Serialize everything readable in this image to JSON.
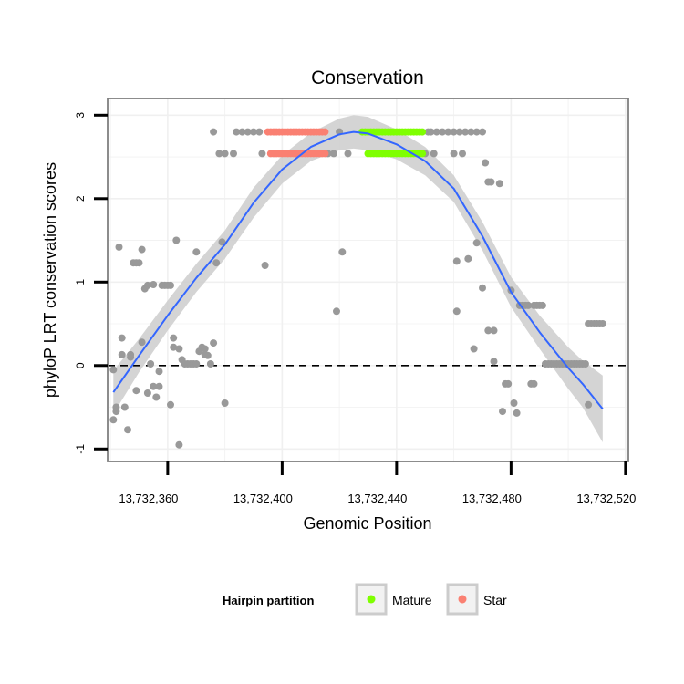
{
  "chart_data": {
    "type": "scatter",
    "title": "Conservation",
    "xlabel": "Genomic Position",
    "ylabel": "phyloP LRT conservation scores",
    "xlim": [
      13732339,
      13732521
    ],
    "ylim": [
      -1.15,
      3.2
    ],
    "x_ticks": [
      13732360,
      13732400,
      13732440,
      13732480,
      13732520
    ],
    "x_tick_labels": [
      "13,732,360",
      "13,732,400",
      "13,732,440",
      "13,732,480",
      "13,732,520"
    ],
    "y_ticks": [
      -1,
      0,
      1,
      2,
      3
    ],
    "y_tick_labels": [
      "-1",
      "0",
      "1",
      "2",
      "3"
    ],
    "grid": true,
    "reference_line": {
      "y": 0,
      "style": "dashed"
    },
    "legend": {
      "title": "Hairpin partition",
      "position": "bottom",
      "entries": [
        {
          "label": "Mature",
          "color": "#7FFF00"
        },
        {
          "label": "Star",
          "color": "#FA8072"
        }
      ]
    },
    "colors": {
      "other": "#999999",
      "mature": "#7FFF00",
      "star": "#FA8072",
      "smooth": "#3366FF",
      "band": "#CCCCCC",
      "panel_border": "#808080",
      "grid": "#F0F0F0"
    },
    "series": [
      {
        "name": "Other",
        "points": [
          [
            13732341,
            -0.05
          ],
          [
            13732341,
            -0.65
          ],
          [
            13732342,
            -0.55
          ],
          [
            13732342,
            -0.5
          ],
          [
            13732343,
            1.42
          ],
          [
            13732344,
            0.13
          ],
          [
            13732344,
            0.33
          ],
          [
            13732345,
            -0.5
          ],
          [
            13732346,
            -0.77
          ],
          [
            13732347,
            0.1
          ],
          [
            13732347,
            0.13
          ],
          [
            13732348,
            1.23
          ],
          [
            13732349,
            1.23
          ],
          [
            13732349,
            -0.3
          ],
          [
            13732350,
            1.23
          ],
          [
            13732351,
            1.39
          ],
          [
            13732351,
            0.28
          ],
          [
            13732352,
            0.92
          ],
          [
            13732353,
            0.96
          ],
          [
            13732353,
            -0.33
          ],
          [
            13732354,
            0.02
          ],
          [
            13732355,
            -0.25
          ],
          [
            13732355,
            0.97
          ],
          [
            13732356,
            -0.38
          ],
          [
            13732357,
            -0.25
          ],
          [
            13732357,
            -0.07
          ],
          [
            13732358,
            0.96
          ],
          [
            13732359,
            0.96
          ],
          [
            13732360,
            0.96
          ],
          [
            13732361,
            0.96
          ],
          [
            13732361,
            -0.47
          ],
          [
            13732362,
            0.33
          ],
          [
            13732362,
            0.22
          ],
          [
            13732363,
            1.5
          ],
          [
            13732364,
            0.2
          ],
          [
            13732364,
            -0.95
          ],
          [
            13732365,
            0.07
          ],
          [
            13732366,
            0.02
          ],
          [
            13732367,
            0.02
          ],
          [
            13732368,
            0.02
          ],
          [
            13732369,
            0.02
          ],
          [
            13732370,
            0.02
          ],
          [
            13732370,
            1.36
          ],
          [
            13732371,
            0.17
          ],
          [
            13732372,
            0.22
          ],
          [
            13732373,
            0.2
          ],
          [
            13732373,
            0.13
          ],
          [
            13732374,
            0.12
          ],
          [
            13732375,
            0.02
          ],
          [
            13732376,
            0.27
          ],
          [
            13732377,
            1.23
          ],
          [
            13732379,
            1.48
          ],
          [
            13732380,
            -0.45
          ],
          [
            13732376,
            2.8
          ],
          [
            13732378,
            2.54
          ],
          [
            13732380,
            2.54
          ],
          [
            13732383,
            2.54
          ],
          [
            13732384,
            2.8
          ],
          [
            13732386,
            2.8
          ],
          [
            13732388,
            2.8
          ],
          [
            13732390,
            2.8
          ],
          [
            13732392,
            2.8
          ],
          [
            13732393,
            2.54
          ],
          [
            13732394,
            1.2
          ],
          [
            13732416,
            2.54
          ],
          [
            13732418,
            2.54
          ],
          [
            13732419,
            0.65
          ],
          [
            13732420,
            2.8
          ],
          [
            13732421,
            1.36
          ],
          [
            13732423,
            2.54
          ],
          [
            13732450,
            2.54
          ],
          [
            13732451,
            2.8
          ],
          [
            13732452,
            2.8
          ],
          [
            13732453,
            2.54
          ],
          [
            13732454,
            2.8
          ],
          [
            13732456,
            2.8
          ],
          [
            13732458,
            2.8
          ],
          [
            13732460,
            2.8
          ],
          [
            13732460,
            2.54
          ],
          [
            13732461,
            1.25
          ],
          [
            13732461,
            0.65
          ],
          [
            13732462,
            2.8
          ],
          [
            13732463,
            2.54
          ],
          [
            13732464,
            2.8
          ],
          [
            13732465,
            1.28
          ],
          [
            13732466,
            2.8
          ],
          [
            13732467,
            0.2
          ],
          [
            13732468,
            2.8
          ],
          [
            13732468,
            1.47
          ],
          [
            13732470,
            2.8
          ],
          [
            13732470,
            0.93
          ],
          [
            13732471,
            2.43
          ],
          [
            13732472,
            2.2
          ],
          [
            13732472,
            0.42
          ],
          [
            13732473,
            2.2
          ],
          [
            13732474,
            0.42
          ],
          [
            13732474,
            0.05
          ],
          [
            13732476,
            2.18
          ],
          [
            13732477,
            -0.55
          ],
          [
            13732478,
            -0.22
          ],
          [
            13732479,
            -0.22
          ],
          [
            13732480,
            0.9
          ],
          [
            13732481,
            -0.45
          ],
          [
            13732482,
            -0.57
          ],
          [
            13732483,
            0.72
          ],
          [
            13732484,
            0.72
          ],
          [
            13732485,
            0.72
          ],
          [
            13732486,
            0.72
          ],
          [
            13732487,
            -0.22
          ],
          [
            13732488,
            -0.22
          ],
          [
            13732488,
            0.72
          ],
          [
            13732489,
            0.72
          ],
          [
            13732490,
            0.72
          ],
          [
            13732491,
            0.72
          ],
          [
            13732492,
            0.02
          ],
          [
            13732493,
            0.02
          ],
          [
            13732494,
            0.02
          ],
          [
            13732495,
            0.02
          ],
          [
            13732496,
            0.02
          ],
          [
            13732497,
            0.02
          ],
          [
            13732498,
            0.02
          ],
          [
            13732499,
            0.02
          ],
          [
            13732500,
            0.02
          ],
          [
            13732501,
            0.02
          ],
          [
            13732502,
            0.02
          ],
          [
            13732503,
            0.02
          ],
          [
            13732504,
            0.02
          ],
          [
            13732505,
            0.02
          ],
          [
            13732506,
            0.02
          ],
          [
            13732507,
            -0.47
          ],
          [
            13732507,
            0.5
          ],
          [
            13732508,
            0.5
          ],
          [
            13732509,
            0.5
          ],
          [
            13732510,
            0.5
          ],
          [
            13732511,
            0.5
          ],
          [
            13732512,
            0.5
          ]
        ]
      },
      {
        "name": "Star",
        "points": [
          [
            13732395,
            2.8
          ],
          [
            13732396,
            2.8
          ],
          [
            13732397,
            2.8
          ],
          [
            13732398,
            2.8
          ],
          [
            13732399,
            2.8
          ],
          [
            13732400,
            2.8
          ],
          [
            13732401,
            2.8
          ],
          [
            13732402,
            2.8
          ],
          [
            13732403,
            2.8
          ],
          [
            13732404,
            2.8
          ],
          [
            13732405,
            2.8
          ],
          [
            13732406,
            2.8
          ],
          [
            13732407,
            2.8
          ],
          [
            13732408,
            2.8
          ],
          [
            13732409,
            2.8
          ],
          [
            13732410,
            2.8
          ],
          [
            13732411,
            2.8
          ],
          [
            13732412,
            2.8
          ],
          [
            13732413,
            2.8
          ],
          [
            13732414,
            2.8
          ],
          [
            13732415,
            2.8
          ],
          [
            13732396,
            2.54
          ],
          [
            13732397,
            2.54
          ],
          [
            13732398,
            2.54
          ],
          [
            13732399,
            2.54
          ],
          [
            13732400,
            2.54
          ],
          [
            13732401,
            2.54
          ],
          [
            13732402,
            2.54
          ],
          [
            13732403,
            2.54
          ],
          [
            13732404,
            2.54
          ],
          [
            13732405,
            2.54
          ],
          [
            13732406,
            2.54
          ],
          [
            13732407,
            2.54
          ],
          [
            13732408,
            2.54
          ],
          [
            13732409,
            2.54
          ],
          [
            13732410,
            2.54
          ],
          [
            13732411,
            2.54
          ],
          [
            13732412,
            2.54
          ],
          [
            13732413,
            2.54
          ],
          [
            13732414,
            2.54
          ],
          [
            13732415,
            2.54
          ]
        ]
      },
      {
        "name": "Mature",
        "points": [
          [
            13732428,
            2.8
          ],
          [
            13732429,
            2.8
          ],
          [
            13732430,
            2.8
          ],
          [
            13732431,
            2.8
          ],
          [
            13732432,
            2.8
          ],
          [
            13732433,
            2.8
          ],
          [
            13732434,
            2.8
          ],
          [
            13732435,
            2.8
          ],
          [
            13732436,
            2.8
          ],
          [
            13732437,
            2.8
          ],
          [
            13732438,
            2.8
          ],
          [
            13732439,
            2.8
          ],
          [
            13732440,
            2.8
          ],
          [
            13732441,
            2.8
          ],
          [
            13732442,
            2.8
          ],
          [
            13732443,
            2.8
          ],
          [
            13732444,
            2.8
          ],
          [
            13732445,
            2.8
          ],
          [
            13732446,
            2.8
          ],
          [
            13732447,
            2.8
          ],
          [
            13732448,
            2.8
          ],
          [
            13732449,
            2.8
          ],
          [
            13732430,
            2.54
          ],
          [
            13732431,
            2.54
          ],
          [
            13732432,
            2.54
          ],
          [
            13732433,
            2.54
          ],
          [
            13732434,
            2.54
          ],
          [
            13732435,
            2.54
          ],
          [
            13732436,
            2.54
          ],
          [
            13732437,
            2.54
          ],
          [
            13732438,
            2.54
          ],
          [
            13732439,
            2.54
          ],
          [
            13732440,
            2.54
          ],
          [
            13732441,
            2.54
          ],
          [
            13732442,
            2.54
          ],
          [
            13732443,
            2.54
          ],
          [
            13732444,
            2.54
          ],
          [
            13732445,
            2.54
          ],
          [
            13732446,
            2.54
          ],
          [
            13732447,
            2.54
          ],
          [
            13732448,
            2.54
          ],
          [
            13732449,
            2.54
          ]
        ]
      }
    ],
    "smooth": {
      "name": "loess fit",
      "x": [
        13732341,
        13732350,
        13732360,
        13732370,
        13732380,
        13732390,
        13732400,
        13732410,
        13732420,
        13732425,
        13732430,
        13732440,
        13732450,
        13732460,
        13732470,
        13732480,
        13732490,
        13732500,
        13732505,
        13732512
      ],
      "y": [
        -0.32,
        0.12,
        0.6,
        1.05,
        1.45,
        1.95,
        2.35,
        2.62,
        2.77,
        2.8,
        2.78,
        2.65,
        2.45,
        2.12,
        1.55,
        0.88,
        0.4,
        -0.03,
        -0.22,
        -0.52
      ],
      "lower": [
        -0.58,
        -0.08,
        0.42,
        0.88,
        1.28,
        1.77,
        2.18,
        2.45,
        2.58,
        2.6,
        2.58,
        2.47,
        2.28,
        1.96,
        1.38,
        0.7,
        0.2,
        -0.28,
        -0.5,
        -0.92
      ],
      "upper": [
        -0.06,
        0.32,
        0.78,
        1.22,
        1.62,
        2.13,
        2.52,
        2.79,
        2.96,
        3.0,
        2.98,
        2.83,
        2.62,
        2.28,
        1.72,
        1.06,
        0.6,
        0.22,
        0.06,
        -0.12
      ]
    }
  }
}
